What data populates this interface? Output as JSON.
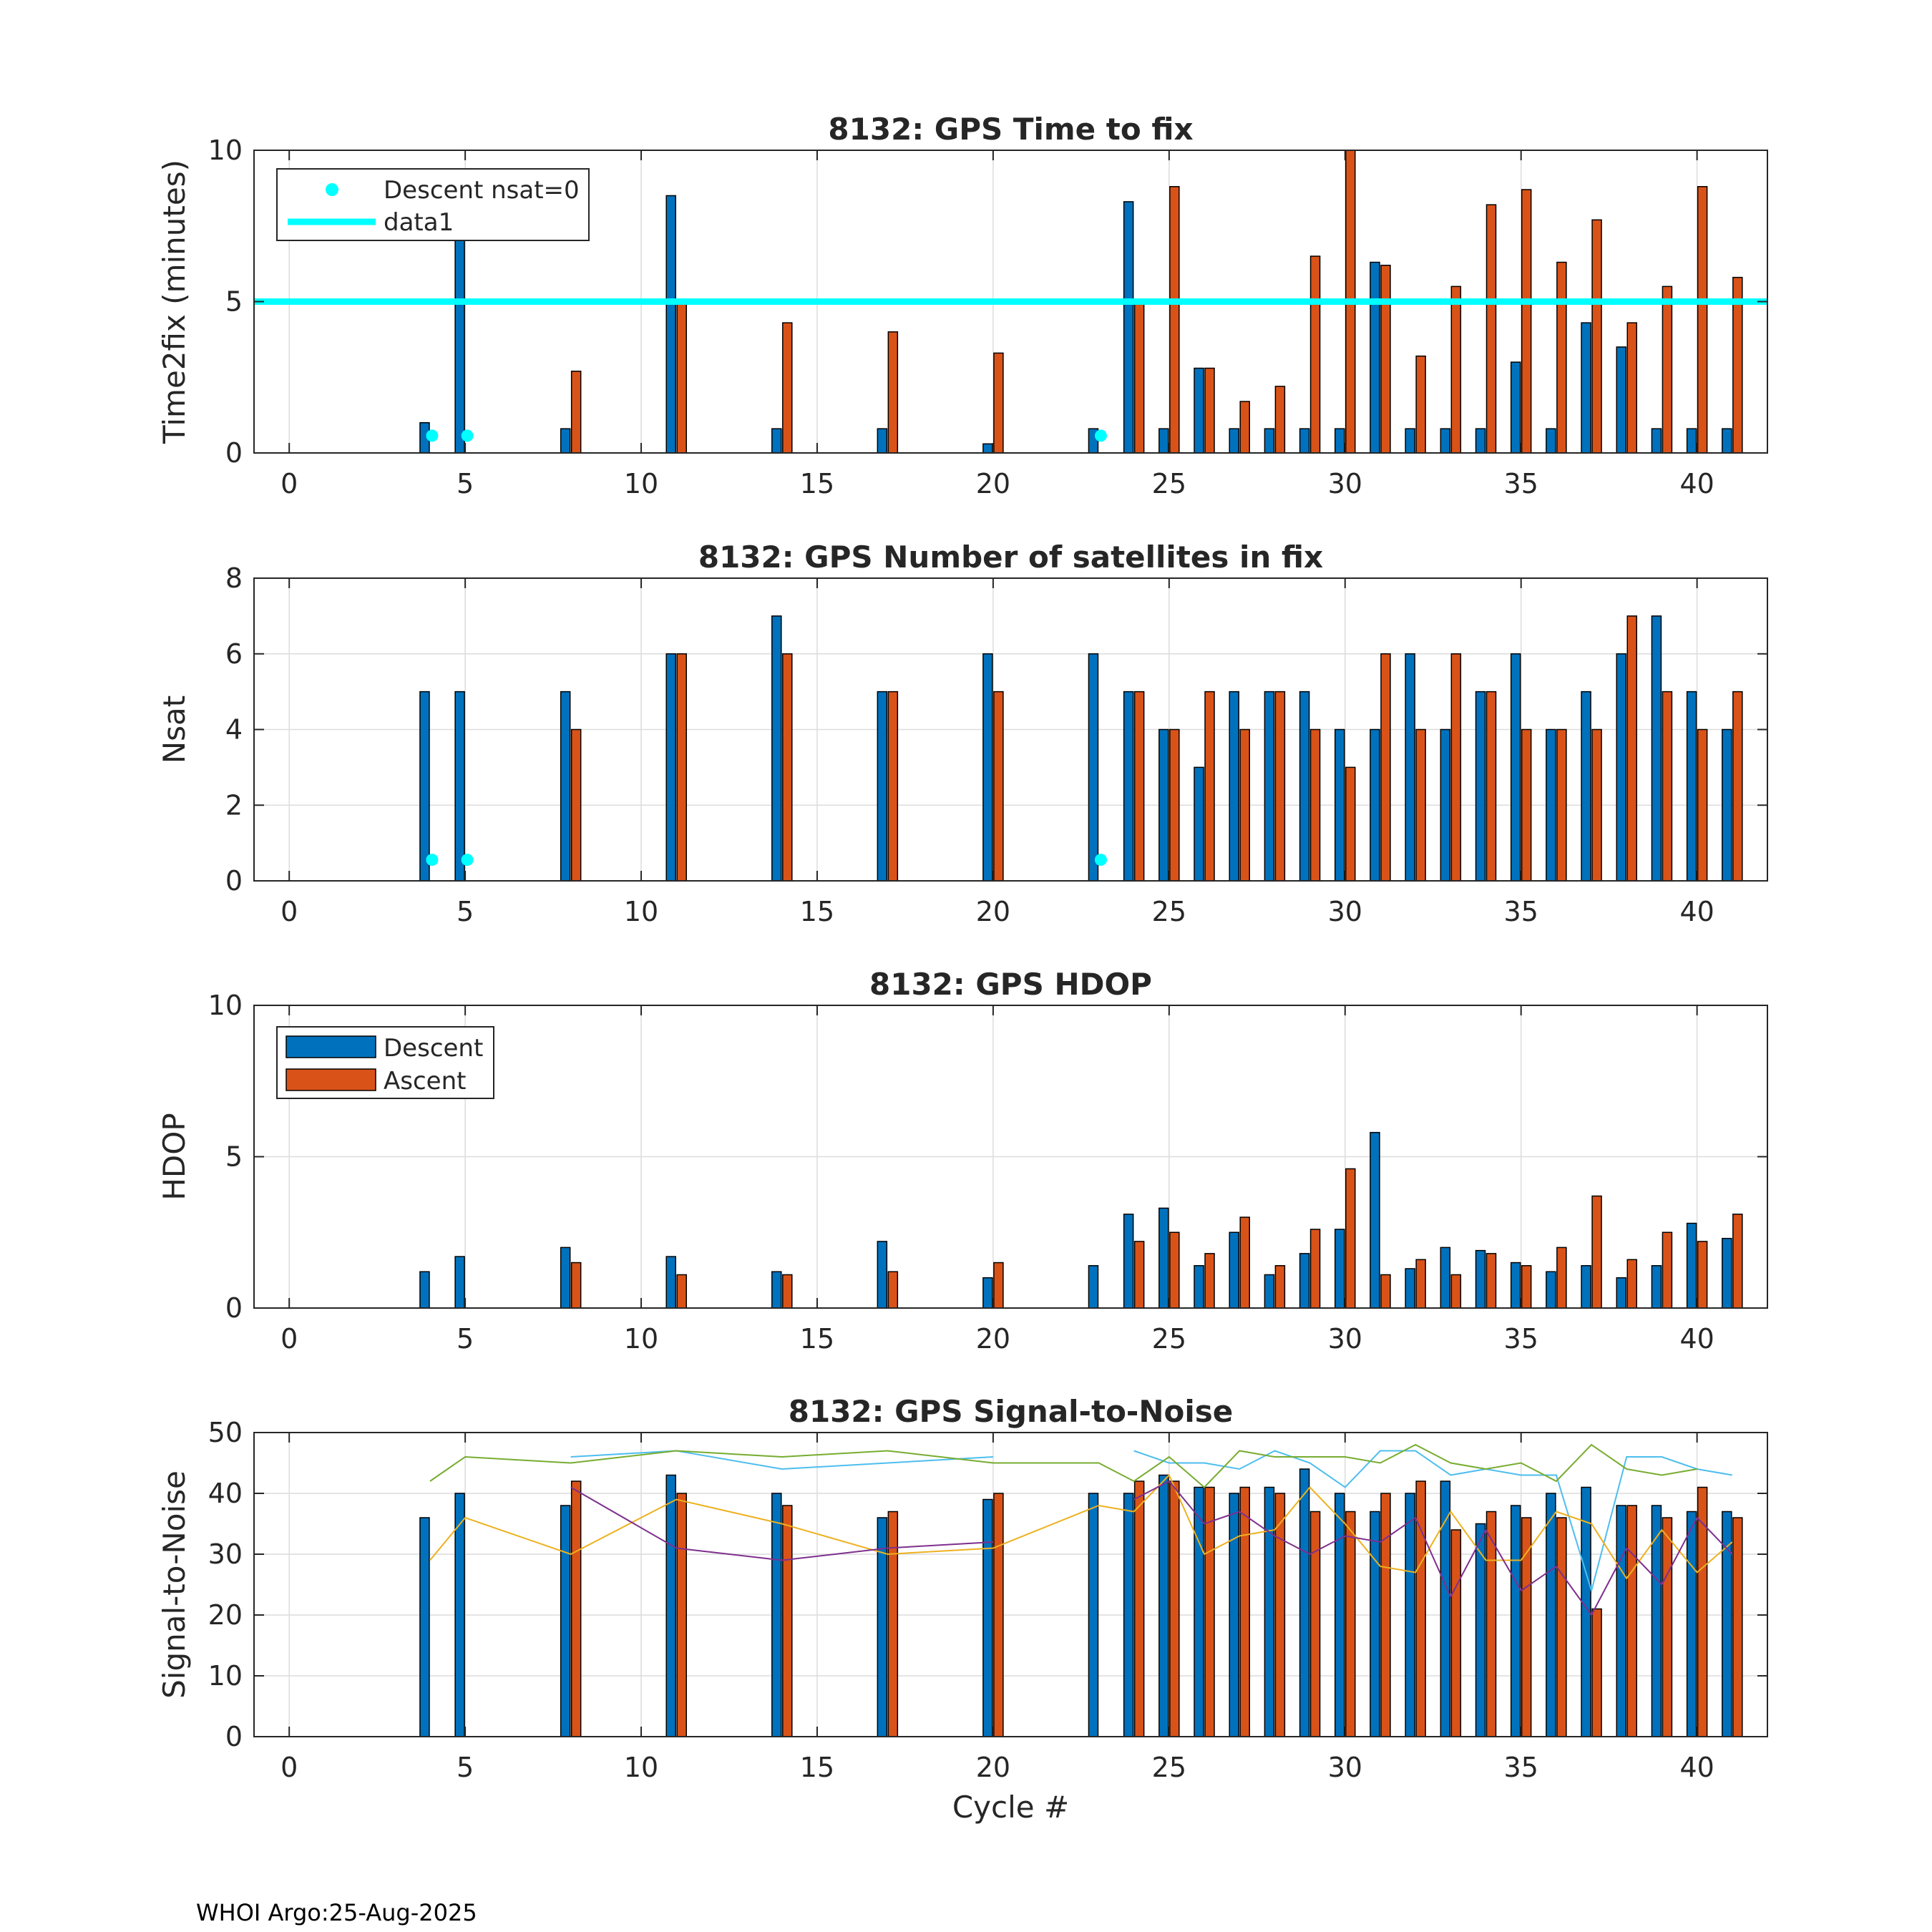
{
  "footer": "WHOI Argo:25-Aug-2025",
  "colors": {
    "descent": "#0072BD",
    "ascent": "#D95319",
    "reference": "#00FFFF",
    "grid": "#DCDCDC",
    "snr_lines": [
      "#4DBEEE",
      "#77AC30",
      "#EDB120",
      "#7E2F8E"
    ]
  },
  "chart_data": [
    {
      "type": "bar",
      "title": "8132: GPS Time to fix",
      "xlabel": "",
      "ylabel": "Time2fix (minutes)",
      "xlim": [
        -1,
        42
      ],
      "ylim": [
        0,
        10
      ],
      "xticks": [
        0,
        5,
        10,
        15,
        20,
        25,
        30,
        35,
        40
      ],
      "yticks": [
        0,
        5,
        10
      ],
      "grid": true,
      "x": [
        4,
        5,
        8,
        11,
        14,
        17,
        20,
        23,
        24,
        25,
        26,
        27,
        28,
        29,
        30,
        31,
        32,
        33,
        34,
        35,
        36,
        37,
        38,
        39,
        40,
        41
      ],
      "series": [
        {
          "name": "Descent",
          "values": [
            1.0,
            7.2,
            0.8,
            8.5,
            0.8,
            0.8,
            0.3,
            0.8,
            8.3,
            0.8,
            2.8,
            0.8,
            0.8,
            0.8,
            0.8,
            6.3,
            0.8,
            0.8,
            0.8,
            3.0,
            0.8,
            4.3,
            3.5,
            0.8,
            0.8,
            0.8
          ]
        },
        {
          "name": "Ascent",
          "values": [
            0,
            0,
            2.7,
            5.0,
            4.3,
            4.0,
            3.3,
            0,
            5.0,
            8.8,
            2.8,
            1.7,
            2.2,
            6.5,
            10.0,
            6.2,
            3.2,
            5.5,
            8.2,
            8.7,
            6.3,
            7.7,
            4.3,
            5.5,
            8.8,
            5.8
          ]
        }
      ],
      "markers": {
        "name": "Descent nsat=0",
        "x": [
          4,
          5,
          23
        ],
        "y": [
          0.5,
          0.5,
          0.5
        ]
      },
      "reference_line": {
        "name": "data1",
        "y": 5
      },
      "legend": {
        "position": "top-left",
        "entries": [
          "Descent nsat=0",
          "data1"
        ]
      }
    },
    {
      "type": "bar",
      "title": "8132: GPS Number of satellites in fix",
      "xlabel": "",
      "ylabel": "Nsat",
      "xlim": [
        -1,
        42
      ],
      "ylim": [
        0,
        8
      ],
      "xticks": [
        0,
        5,
        10,
        15,
        20,
        25,
        30,
        35,
        40
      ],
      "yticks": [
        0,
        2,
        4,
        6,
        8
      ],
      "grid": true,
      "x": [
        4,
        5,
        8,
        11,
        14,
        17,
        20,
        23,
        24,
        25,
        26,
        27,
        28,
        29,
        30,
        31,
        32,
        33,
        34,
        35,
        36,
        37,
        38,
        39,
        40,
        41
      ],
      "series": [
        {
          "name": "Descent",
          "values": [
            5,
            5,
            5,
            6,
            7,
            5,
            6,
            6,
            5,
            4,
            3,
            5,
            5,
            5,
            4,
            4,
            6,
            4,
            5,
            6,
            4,
            5,
            6,
            7,
            5,
            4
          ]
        },
        {
          "name": "Ascent",
          "values": [
            0,
            0,
            4,
            6,
            6,
            5,
            5,
            0,
            5,
            4,
            5,
            4,
            5,
            4,
            3,
            6,
            4,
            6,
            5,
            4,
            4,
            4,
            7,
            5,
            4,
            5
          ]
        }
      ],
      "markers": {
        "name": "Descent nsat=0",
        "x": [
          4,
          5,
          23
        ],
        "y": [
          0.5,
          0.5,
          0.5
        ]
      }
    },
    {
      "type": "bar",
      "title": "8132: GPS HDOP",
      "xlabel": "",
      "ylabel": "HDOP",
      "xlim": [
        -1,
        42
      ],
      "ylim": [
        0,
        10
      ],
      "xticks": [
        0,
        5,
        10,
        15,
        20,
        25,
        30,
        35,
        40
      ],
      "yticks": [
        0,
        5,
        10
      ],
      "grid": true,
      "x": [
        4,
        5,
        8,
        11,
        14,
        17,
        20,
        23,
        24,
        25,
        26,
        27,
        28,
        29,
        30,
        31,
        32,
        33,
        34,
        35,
        36,
        37,
        38,
        39,
        40,
        41
      ],
      "series": [
        {
          "name": "Descent",
          "values": [
            1.2,
            1.7,
            2.0,
            1.7,
            1.2,
            2.2,
            1.0,
            1.4,
            3.1,
            3.3,
            1.4,
            2.5,
            1.1,
            1.8,
            2.6,
            5.8,
            1.3,
            2.0,
            1.9,
            1.5,
            1.2,
            1.4,
            1.0,
            1.4,
            2.8,
            2.3
          ]
        },
        {
          "name": "Ascent",
          "values": [
            0,
            0,
            1.5,
            1.1,
            1.1,
            1.2,
            1.5,
            0,
            2.2,
            2.5,
            1.8,
            3.0,
            1.4,
            2.6,
            4.6,
            1.1,
            1.6,
            1.1,
            1.8,
            1.4,
            2.0,
            3.7,
            1.6,
            2.5,
            2.2,
            3.1
          ]
        }
      ],
      "legend": {
        "position": "top-left",
        "entries": [
          "Descent",
          "Ascent"
        ]
      }
    },
    {
      "type": "bar",
      "title": "8132: GPS Signal-to-Noise",
      "xlabel": "Cycle #",
      "ylabel": "Signal-to-Noise",
      "xlim": [
        -1,
        42
      ],
      "ylim": [
        0,
        50
      ],
      "xticks": [
        0,
        5,
        10,
        15,
        20,
        25,
        30,
        35,
        40
      ],
      "yticks": [
        0,
        10,
        20,
        30,
        40,
        50
      ],
      "grid": true,
      "x": [
        4,
        5,
        8,
        11,
        14,
        17,
        20,
        23,
        24,
        25,
        26,
        27,
        28,
        29,
        30,
        31,
        32,
        33,
        34,
        35,
        36,
        37,
        38,
        39,
        40,
        41
      ],
      "series": [
        {
          "name": "Descent",
          "values": [
            36,
            40,
            38,
            43,
            40,
            36,
            39,
            40,
            40,
            43,
            41,
            40,
            41,
            44,
            40,
            37,
            40,
            42,
            35,
            38,
            40,
            41,
            38,
            38,
            37,
            37
          ]
        },
        {
          "name": "Ascent",
          "values": [
            0,
            0,
            42,
            40,
            38,
            37,
            40,
            0,
            42,
            42,
            41,
            41,
            40,
            37,
            37,
            40,
            42,
            34,
            37,
            36,
            36,
            21,
            38,
            36,
            41,
            36
          ]
        }
      ],
      "lines": [
        {
          "name": "sat1",
          "segments": [
            {
              "x": [
                8,
                11,
                14,
                17,
                20
              ],
              "y": [
                46,
                47,
                44,
                45,
                46
              ]
            },
            {
              "x": [
                24,
                25,
                26,
                27,
                28,
                29,
                30,
                31,
                32,
                33,
                34,
                35,
                36,
                37,
                38,
                39,
                40,
                41
              ],
              "y": [
                47,
                45,
                45,
                44,
                47,
                45,
                41,
                47,
                47,
                43,
                44,
                43,
                43,
                24,
                46,
                46,
                44,
                43
              ]
            }
          ]
        },
        {
          "name": "sat2",
          "segments": [
            {
              "x": [
                4,
                5,
                8,
                11,
                14,
                17,
                20,
                23,
                24,
                25,
                26,
                27,
                28,
                29,
                30,
                31,
                32,
                33,
                34,
                35,
                36,
                37,
                38,
                39,
                40
              ],
              "y": [
                42,
                46,
                45,
                47,
                46,
                47,
                45,
                45,
                42,
                46,
                41,
                47,
                46,
                46,
                46,
                45,
                48,
                45,
                44,
                45,
                42,
                48,
                44,
                43,
                44
              ]
            }
          ]
        },
        {
          "name": "sat3",
          "segments": [
            {
              "x": [
                4,
                5,
                8,
                11,
                14,
                17,
                20,
                23,
                24,
                25,
                26,
                27,
                28,
                29,
                30,
                31,
                32,
                33,
                34,
                35,
                36,
                37,
                38,
                39,
                40,
                41
              ],
              "y": [
                29,
                36,
                30,
                39,
                35,
                30,
                31,
                38,
                37,
                43,
                30,
                33,
                34,
                41,
                35,
                28,
                27,
                37,
                29,
                29,
                37,
                35,
                26,
                34,
                27,
                32
              ]
            }
          ]
        },
        {
          "name": "sat4",
          "segments": [
            {
              "x": [
                8,
                11,
                14,
                17,
                20
              ],
              "y": [
                41,
                31,
                29,
                31,
                32
              ]
            },
            {
              "x": [
                24,
                25,
                26,
                27,
                28,
                29,
                30,
                31,
                32,
                33,
                34,
                35,
                36,
                37,
                38,
                39,
                40,
                41
              ],
              "y": [
                39,
                42,
                35,
                37,
                33,
                30,
                33,
                32,
                36,
                23,
                34,
                24,
                28,
                20,
                31,
                25,
                36,
                30
              ]
            }
          ]
        }
      ]
    }
  ]
}
